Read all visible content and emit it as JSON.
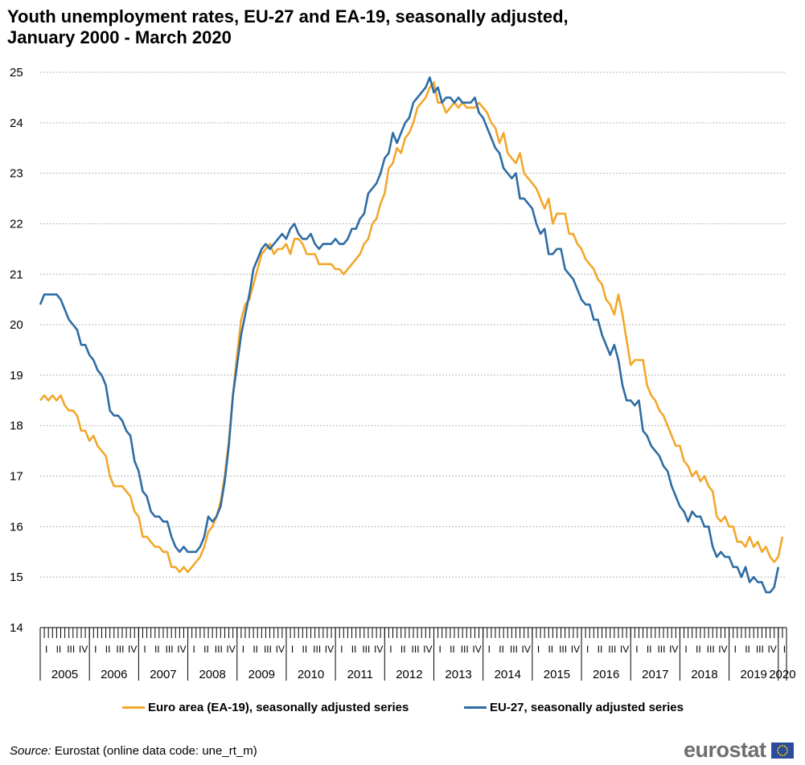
{
  "title": {
    "line1": "Youth unemployment rates, EU-27 and EA-19, seasonally adjusted,",
    "line2": "January 2000 - March 2020"
  },
  "chart_data": {
    "type": "line",
    "ylim": [
      14,
      25
    ],
    "y_ticks": [
      "14",
      "15",
      "16",
      "17",
      "18",
      "19",
      "20",
      "21",
      "22",
      "23",
      "24",
      "25"
    ],
    "x_range_months": [
      0,
      182
    ],
    "year_labels": [
      "2005",
      "2006",
      "2007",
      "2008",
      "2009",
      "2010",
      "2011",
      "2012",
      "2013",
      "2014",
      "2015",
      "2016",
      "2017",
      "2018",
      "2019",
      "2020"
    ],
    "quarter_labels": [
      "I",
      "II",
      "III",
      "IV"
    ],
    "grid": true,
    "series": [
      {
        "name": "Euro area (EA-19), seasonally adjusted series",
        "color": "#f2a72b",
        "values": [
          18.5,
          18.6,
          18.5,
          18.6,
          18.5,
          18.6,
          18.4,
          18.3,
          18.3,
          18.2,
          17.9,
          17.9,
          17.7,
          17.8,
          17.6,
          17.5,
          17.4,
          17.0,
          16.8,
          16.8,
          16.8,
          16.7,
          16.6,
          16.3,
          16.2,
          15.8,
          15.8,
          15.7,
          15.6,
          15.6,
          15.5,
          15.5,
          15.2,
          15.2,
          15.1,
          15.2,
          15.1,
          15.2,
          15.3,
          15.4,
          15.6,
          15.9,
          16.0,
          16.2,
          16.5,
          17.0,
          17.7,
          18.6,
          19.4,
          20.1,
          20.4,
          20.5,
          20.8,
          21.1,
          21.4,
          21.5,
          21.6,
          21.4,
          21.5,
          21.5,
          21.6,
          21.4,
          21.7,
          21.7,
          21.6,
          21.4,
          21.4,
          21.4,
          21.2,
          21.2,
          21.2,
          21.2,
          21.1,
          21.1,
          21.0,
          21.1,
          21.2,
          21.3,
          21.4,
          21.6,
          21.7,
          22.0,
          22.1,
          22.4,
          22.6,
          23.1,
          23.2,
          23.5,
          23.4,
          23.7,
          23.8,
          24.0,
          24.3,
          24.4,
          24.5,
          24.7,
          24.8,
          24.4,
          24.4,
          24.2,
          24.3,
          24.4,
          24.3,
          24.4,
          24.3,
          24.3,
          24.3,
          24.4,
          24.3,
          24.2,
          24.0,
          23.9,
          23.6,
          23.8,
          23.4,
          23.3,
          23.2,
          23.4,
          23.0,
          22.9,
          22.8,
          22.7,
          22.5,
          22.3,
          22.5,
          22.0,
          22.2,
          22.2,
          22.2,
          21.8,
          21.8,
          21.6,
          21.5,
          21.3,
          21.2,
          21.1,
          20.9,
          20.8,
          20.5,
          20.4,
          20.2,
          20.6,
          20.2,
          19.7,
          19.2,
          19.3,
          19.3,
          19.3,
          18.8,
          18.6,
          18.5,
          18.3,
          18.2,
          18.0,
          17.8,
          17.6,
          17.6,
          17.3,
          17.2,
          17.0,
          17.1,
          16.9,
          17.0,
          16.8,
          16.7,
          16.2,
          16.1,
          16.2,
          16.0,
          16.0,
          15.7,
          15.7,
          15.6,
          15.8,
          15.6,
          15.7,
          15.5,
          15.6,
          15.4,
          15.3,
          15.4,
          15.8
        ]
      },
      {
        "name": "EU-27, seasonally adjusted series",
        "color": "#2e6ca4",
        "values": [
          20.4,
          20.6,
          20.6,
          20.6,
          20.6,
          20.5,
          20.3,
          20.1,
          20.0,
          19.9,
          19.6,
          19.6,
          19.4,
          19.3,
          19.1,
          19.0,
          18.8,
          18.3,
          18.2,
          18.2,
          18.1,
          17.9,
          17.8,
          17.3,
          17.1,
          16.7,
          16.6,
          16.3,
          16.2,
          16.2,
          16.1,
          16.1,
          15.8,
          15.6,
          15.5,
          15.6,
          15.5,
          15.5,
          15.5,
          15.6,
          15.8,
          16.2,
          16.1,
          16.2,
          16.4,
          16.9,
          17.6,
          18.6,
          19.2,
          19.8,
          20.2,
          20.6,
          21.1,
          21.3,
          21.5,
          21.6,
          21.5,
          21.6,
          21.7,
          21.8,
          21.7,
          21.9,
          22.0,
          21.8,
          21.7,
          21.7,
          21.8,
          21.6,
          21.5,
          21.6,
          21.6,
          21.6,
          21.7,
          21.6,
          21.6,
          21.7,
          21.9,
          21.9,
          22.1,
          22.2,
          22.6,
          22.7,
          22.8,
          23.0,
          23.3,
          23.4,
          23.8,
          23.6,
          23.8,
          24.0,
          24.1,
          24.4,
          24.5,
          24.6,
          24.7,
          24.9,
          24.6,
          24.7,
          24.4,
          24.5,
          24.5,
          24.4,
          24.5,
          24.4,
          24.4,
          24.4,
          24.5,
          24.2,
          24.1,
          23.9,
          23.7,
          23.5,
          23.4,
          23.1,
          23.0,
          22.9,
          23.0,
          22.5,
          22.5,
          22.4,
          22.3,
          22.0,
          21.8,
          21.9,
          21.4,
          21.4,
          21.5,
          21.5,
          21.1,
          21.0,
          20.9,
          20.7,
          20.5,
          20.4,
          20.4,
          20.1,
          20.1,
          19.8,
          19.6,
          19.4,
          19.6,
          19.3,
          18.8,
          18.5,
          18.5,
          18.4,
          18.5,
          17.9,
          17.8,
          17.6,
          17.5,
          17.4,
          17.2,
          17.1,
          16.8,
          16.6,
          16.4,
          16.3,
          16.1,
          16.3,
          16.2,
          16.2,
          16.0,
          16.0,
          15.6,
          15.4,
          15.5,
          15.4,
          15.4,
          15.2,
          15.2,
          15.0,
          15.2,
          14.9,
          15.0,
          14.9,
          14.9,
          14.7,
          14.7,
          14.8,
          15.2
        ]
      }
    ]
  },
  "source": {
    "label": "Source:",
    "text": "Eurostat (online data code: une_rt_m)"
  },
  "logo": {
    "text": "eurostat"
  }
}
